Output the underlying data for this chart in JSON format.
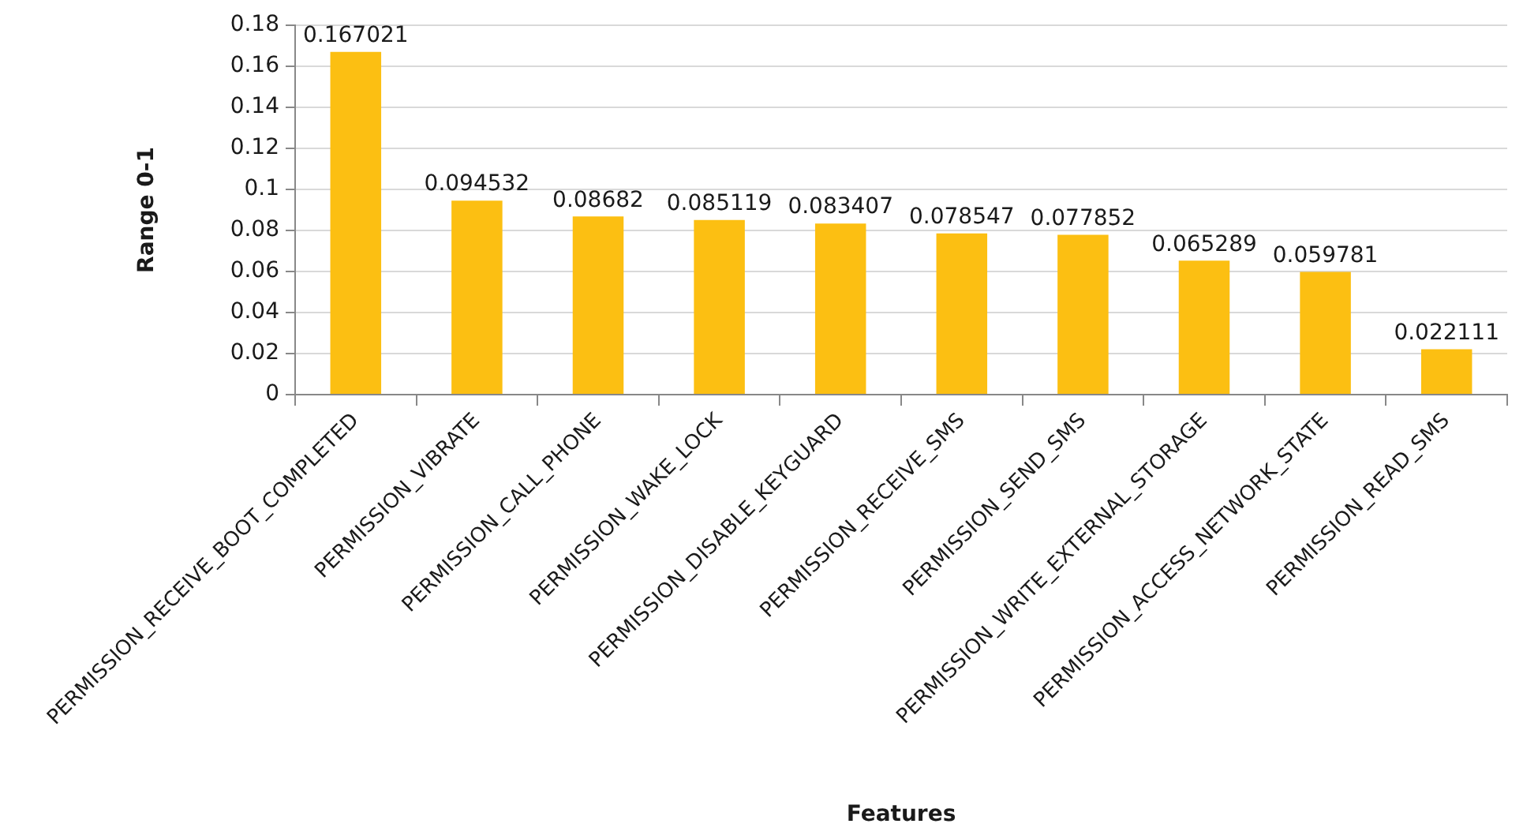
{
  "chart_data": {
    "type": "bar",
    "xlabel": "Features",
    "ylabel": "Range 0-1",
    "categories": [
      "PERMISSION_RECEIVE_BOOT_COMPLETED",
      "PERMISSION_VIBRATE",
      "PERMISSION_CALL_PHONE",
      "PERMISSION_WAKE_LOCK",
      "PERMISSION_DISABLE_KEYGUARD",
      "PERMISSION_RECEIVE_SMS",
      "PERMISSION_SEND_SMS",
      "PERMISSION_WRITE_EXTERNAL_STORAGE",
      "PERMISSION_ACCESS_NETWORK_STATE",
      "PERMISSION_READ_SMS"
    ],
    "values": [
      0.167021,
      0.094532,
      0.08682,
      0.085119,
      0.083407,
      0.078547,
      0.077852,
      0.065289,
      0.059781,
      0.022111
    ],
    "color": "#fcbf12",
    "ylim": [
      0,
      0.18
    ],
    "yticks": [
      0,
      0.02,
      0.04,
      0.06,
      0.08,
      0.1,
      0.12,
      0.14,
      0.16,
      0.18
    ],
    "grid": "y",
    "data_labels": true
  }
}
